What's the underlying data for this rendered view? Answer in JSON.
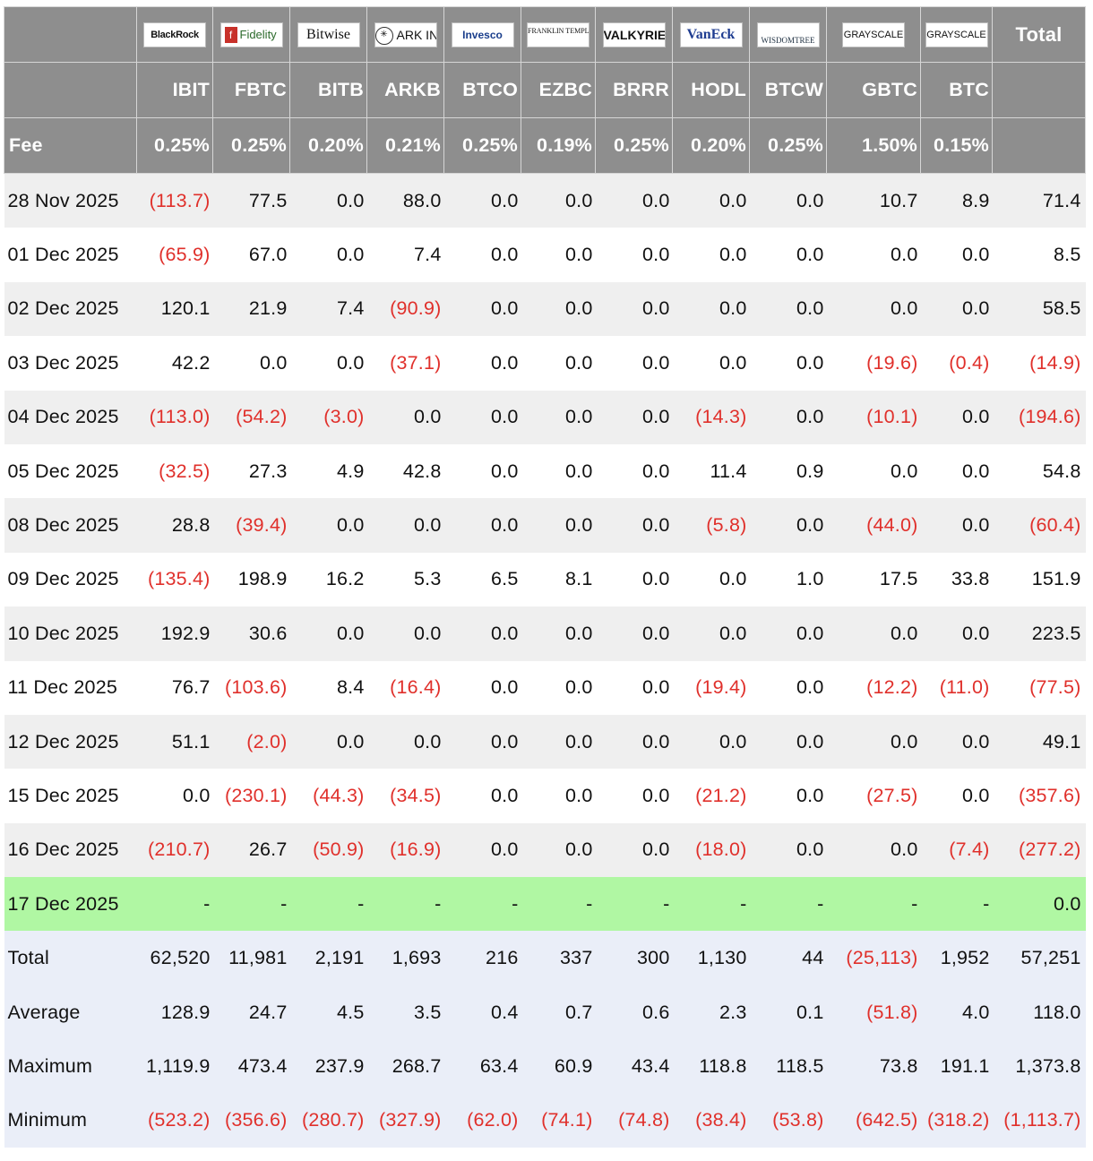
{
  "issuers": [
    {
      "name": "BlackRock",
      "ticker": "IBIT",
      "fee": "0.25%",
      "logo": "BlackRock"
    },
    {
      "name": "Fidelity",
      "ticker": "FBTC",
      "fee": "0.25%",
      "logo": "Fidelity"
    },
    {
      "name": "Bitwise",
      "ticker": "BITB",
      "fee": "0.20%",
      "logo": "Bitwise"
    },
    {
      "name": "ARK Invest",
      "ticker": "ARKB",
      "fee": "0.21%",
      "logo": "ARK INVEST"
    },
    {
      "name": "Invesco",
      "ticker": "BTCO",
      "fee": "0.25%",
      "logo": "Invesco"
    },
    {
      "name": "Franklin Templeton",
      "ticker": "EZBC",
      "fee": "0.19%",
      "logo": "FRANKLIN TEMPLETON"
    },
    {
      "name": "Valkyrie",
      "ticker": "BRRR",
      "fee": "0.25%",
      "logo": "VALKYRIE"
    },
    {
      "name": "VanEck",
      "ticker": "HODL",
      "fee": "0.20%",
      "logo": "VanEck"
    },
    {
      "name": "WisdomTree",
      "ticker": "BTCW",
      "fee": "0.25%",
      "logo": "WISDOMTREE"
    },
    {
      "name": "Grayscale",
      "ticker": "GBTC",
      "fee": "1.50%",
      "logo": "GRAYSCALE"
    },
    {
      "name": "Grayscale",
      "ticker": "BTC",
      "fee": "0.15%",
      "logo": "GRAYSCALE"
    }
  ],
  "header": {
    "total_label": "Total",
    "fee_label": "Fee"
  },
  "rows": [
    {
      "date": "28 Nov 2025",
      "values": [
        "(113.7)",
        "77.5",
        "0.0",
        "88.0",
        "0.0",
        "0.0",
        "0.0",
        "0.0",
        "0.0",
        "10.7",
        "8.9"
      ],
      "total": "71.4"
    },
    {
      "date": "01 Dec 2025",
      "values": [
        "(65.9)",
        "67.0",
        "0.0",
        "7.4",
        "0.0",
        "0.0",
        "0.0",
        "0.0",
        "0.0",
        "0.0",
        "0.0"
      ],
      "total": "8.5"
    },
    {
      "date": "02 Dec 2025",
      "values": [
        "120.1",
        "21.9",
        "7.4",
        "(90.9)",
        "0.0",
        "0.0",
        "0.0",
        "0.0",
        "0.0",
        "0.0",
        "0.0"
      ],
      "total": "58.5"
    },
    {
      "date": "03 Dec 2025",
      "values": [
        "42.2",
        "0.0",
        "0.0",
        "(37.1)",
        "0.0",
        "0.0",
        "0.0",
        "0.0",
        "0.0",
        "(19.6)",
        "(0.4)"
      ],
      "total": "(14.9)"
    },
    {
      "date": "04 Dec 2025",
      "values": [
        "(113.0)",
        "(54.2)",
        "(3.0)",
        "0.0",
        "0.0",
        "0.0",
        "0.0",
        "(14.3)",
        "0.0",
        "(10.1)",
        "0.0"
      ],
      "total": "(194.6)"
    },
    {
      "date": "05 Dec 2025",
      "values": [
        "(32.5)",
        "27.3",
        "4.9",
        "42.8",
        "0.0",
        "0.0",
        "0.0",
        "11.4",
        "0.9",
        "0.0",
        "0.0"
      ],
      "total": "54.8"
    },
    {
      "date": "08 Dec 2025",
      "values": [
        "28.8",
        "(39.4)",
        "0.0",
        "0.0",
        "0.0",
        "0.0",
        "0.0",
        "(5.8)",
        "0.0",
        "(44.0)",
        "0.0"
      ],
      "total": "(60.4)"
    },
    {
      "date": "09 Dec 2025",
      "values": [
        "(135.4)",
        "198.9",
        "16.2",
        "5.3",
        "6.5",
        "8.1",
        "0.0",
        "0.0",
        "1.0",
        "17.5",
        "33.8"
      ],
      "total": "151.9"
    },
    {
      "date": "10 Dec 2025",
      "values": [
        "192.9",
        "30.6",
        "0.0",
        "0.0",
        "0.0",
        "0.0",
        "0.0",
        "0.0",
        "0.0",
        "0.0",
        "0.0"
      ],
      "total": "223.5"
    },
    {
      "date": "11 Dec 2025",
      "values": [
        "76.7",
        "(103.6)",
        "8.4",
        "(16.4)",
        "0.0",
        "0.0",
        "0.0",
        "(19.4)",
        "0.0",
        "(12.2)",
        "(11.0)"
      ],
      "total": "(77.5)"
    },
    {
      "date": "12 Dec 2025",
      "values": [
        "51.1",
        "(2.0)",
        "0.0",
        "0.0",
        "0.0",
        "0.0",
        "0.0",
        "0.0",
        "0.0",
        "0.0",
        "0.0"
      ],
      "total": "49.1"
    },
    {
      "date": "15 Dec 2025",
      "values": [
        "0.0",
        "(230.1)",
        "(44.3)",
        "(34.5)",
        "0.0",
        "0.0",
        "0.0",
        "(21.2)",
        "0.0",
        "(27.5)",
        "0.0"
      ],
      "total": "(357.6)"
    },
    {
      "date": "16 Dec 2025",
      "values": [
        "(210.7)",
        "26.7",
        "(50.9)",
        "(16.9)",
        "0.0",
        "0.0",
        "0.0",
        "(18.0)",
        "0.0",
        "0.0",
        "(7.4)"
      ],
      "total": "(277.2)"
    },
    {
      "date": "17 Dec 2025",
      "values": [
        "-",
        "-",
        "-",
        "-",
        "-",
        "-",
        "-",
        "-",
        "-",
        "-",
        "-"
      ],
      "total": "0.0",
      "highlight": true
    }
  ],
  "summary": [
    {
      "label": "Total",
      "values": [
        "62,520",
        "11,981",
        "2,191",
        "1,693",
        "216",
        "337",
        "300",
        "1,130",
        "44",
        "(25,113)",
        "1,952"
      ],
      "total": "57,251"
    },
    {
      "label": "Average",
      "values": [
        "128.9",
        "24.7",
        "4.5",
        "3.5",
        "0.4",
        "0.7",
        "0.6",
        "2.3",
        "0.1",
        "(51.8)",
        "4.0"
      ],
      "total": "118.0"
    },
    {
      "label": "Maximum",
      "values": [
        "1,119.9",
        "473.4",
        "237.9",
        "268.7",
        "63.4",
        "60.9",
        "43.4",
        "118.8",
        "118.5",
        "73.8",
        "191.1"
      ],
      "total": "1,373.8"
    },
    {
      "label": "Minimum",
      "values": [
        "(523.2)",
        "(356.6)",
        "(280.7)",
        "(327.9)",
        "(62.0)",
        "(74.1)",
        "(74.8)",
        "(38.4)",
        "(53.8)",
        "(642.5)",
        "(318.2)"
      ],
      "total": "(1,113.7)"
    }
  ],
  "colors": {
    "header_bg": "#8e8e8e",
    "negative": "#e0302b",
    "highlight": "#b0f7a3",
    "summary_bg": "#eaeef8",
    "stripe": "#efefef"
  }
}
